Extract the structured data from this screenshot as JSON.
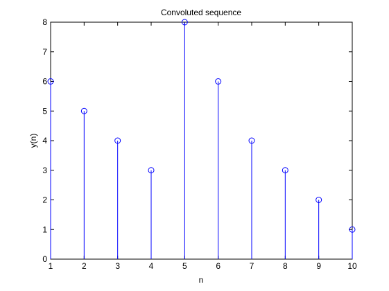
{
  "chart_data": {
    "type": "stem",
    "title": "Convoluted sequence",
    "xlabel": "n",
    "ylabel": "y(n)",
    "x": [
      1,
      2,
      3,
      4,
      5,
      6,
      7,
      8,
      9,
      10
    ],
    "y": [
      6,
      5,
      4,
      3,
      8,
      6,
      4,
      3,
      2,
      1
    ],
    "xlim": [
      1,
      10
    ],
    "ylim": [
      0,
      8
    ],
    "xticks": [
      1,
      2,
      3,
      4,
      5,
      6,
      7,
      8,
      9,
      10
    ],
    "yticks": [
      0,
      1,
      2,
      3,
      4,
      5,
      6,
      7,
      8
    ],
    "grid": false,
    "marker": "circle",
    "colors": {
      "series": "#0000ff",
      "axes": "#000000",
      "background": "#ffffff"
    }
  }
}
